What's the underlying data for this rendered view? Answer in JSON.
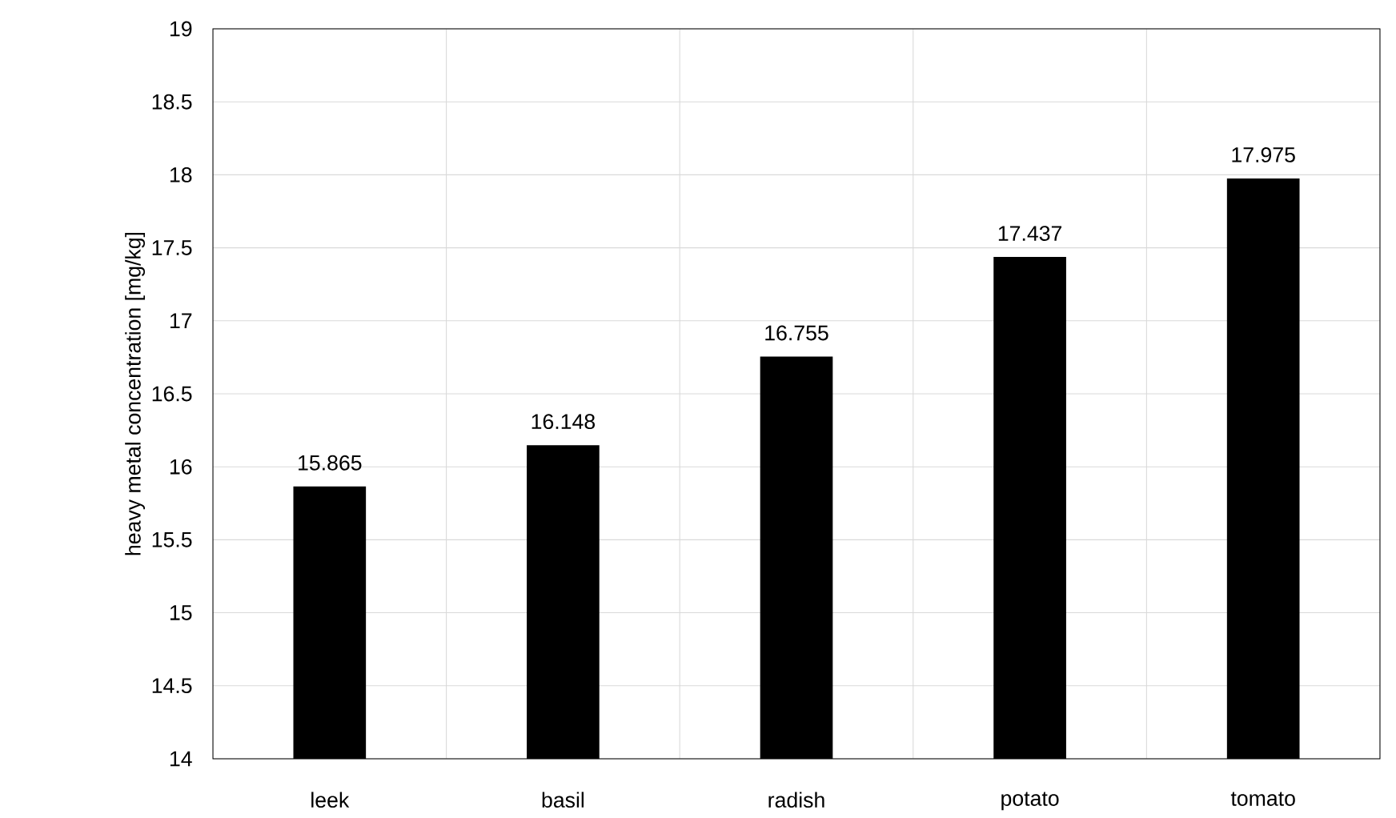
{
  "chart_data": {
    "type": "bar",
    "ylabel": "heavy metal concentration [mg/kg]",
    "categories": [
      "leek",
      "basil",
      "radish",
      "potato",
      "tomato"
    ],
    "values": [
      15.865,
      16.148,
      16.755,
      17.437,
      17.975
    ],
    "color": "#000000",
    "ylim": [
      14,
      19
    ],
    "yticks": [
      14,
      14.5,
      15,
      15.5,
      16,
      16.5,
      17,
      17.5,
      18,
      18.5,
      19
    ],
    "grid": true,
    "data_labels": true
  }
}
